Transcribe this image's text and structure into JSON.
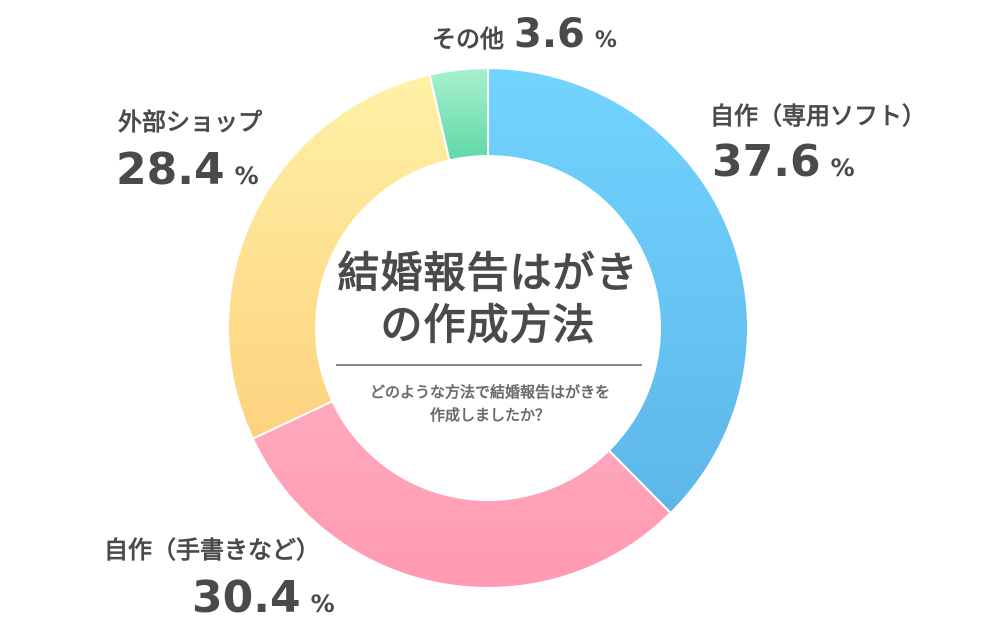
{
  "chart_data": {
    "type": "pie",
    "style": "donut",
    "title": "結婚報告はがきの作成方法",
    "title_lines": [
      "結婚報告はがき",
      "の作成方法"
    ],
    "subtitle_lines": [
      "どのような方法で結婚報告はがきを",
      "作成しましたか？"
    ],
    "unit": "%",
    "slices": [
      {
        "label": "自作（専用ソフト）",
        "value": 37.6,
        "value_text": "37.6",
        "color": "#6cccf5"
      },
      {
        "label": "自作（手書きなど）",
        "value": 30.4,
        "value_text": "30.4",
        "color": "#ffa7ba"
      },
      {
        "label": "外部ショップ",
        "value": 28.4,
        "value_text": "28.4",
        "color": "#fde595"
      },
      {
        "label": "その他",
        "value": 3.6,
        "value_text": "3.6",
        "color": "#92e8c3"
      }
    ]
  }
}
